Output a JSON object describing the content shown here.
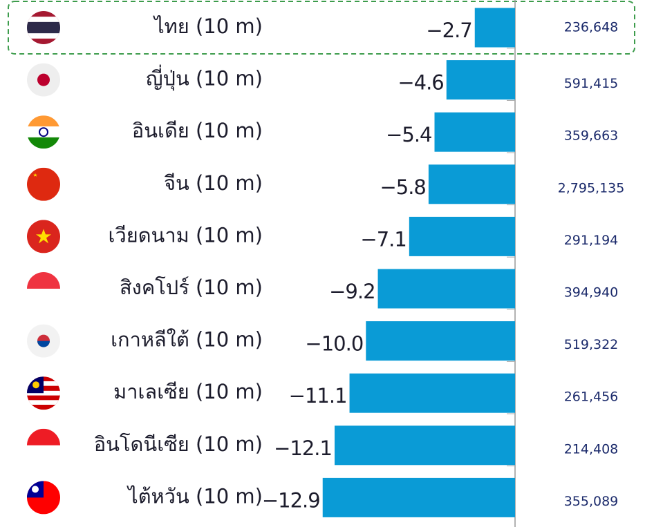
{
  "chart_data": {
    "type": "hbar",
    "categories": [
      "ไทย (10 m)",
      "ญี่ปุ่น (10 m)",
      "อินเดีย (10 m)",
      "จีน (10 m)",
      "เวียดนาม (10 m)",
      "สิงคโปร์ (10 m)",
      "เกาหลีใต้ (10 m)",
      "มาเลเซีย (10 m)",
      "อินโดนีเซีย (10 m)",
      "ไต้หวัน (10 m)"
    ],
    "values": [
      -2.7,
      -4.6,
      -5.4,
      -5.8,
      -7.1,
      -9.2,
      -10.0,
      -11.1,
      -12.1,
      -12.9
    ],
    "value_labels": [
      "−2.7",
      "−4.6",
      "−5.4",
      "−5.8",
      "−7.1",
      "−9.2",
      "−10.0",
      "−11.1",
      "−12.1",
      "−12.9"
    ],
    "side_labels": [
      "236,648",
      "591,415",
      "359,663",
      "2,795,135",
      "291,194",
      "394,940",
      "519,322",
      "261,456",
      "214,408",
      "355,089"
    ],
    "color": "#0a9bd6",
    "xlim": [
      -14,
      0
    ]
  }
}
